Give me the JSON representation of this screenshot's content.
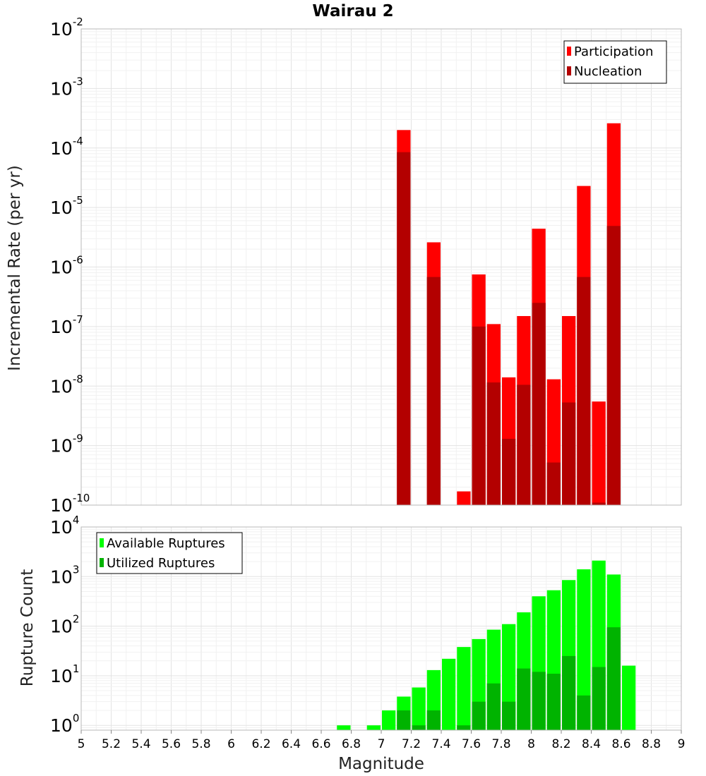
{
  "chart_data": [
    {
      "type": "bar",
      "title": "Wairau 2",
      "ylabel": "Incremental Rate (per yr)",
      "xlabel": "",
      "yscale": "log",
      "ylim": [
        1e-10,
        0.01
      ],
      "xlim": [
        5,
        9
      ],
      "grid": true,
      "legend_position": "top-right",
      "bar_width": 0.1,
      "series": [
        {
          "name": "Participation",
          "color": "#ff0000",
          "points": [
            {
              "x": 7.15,
              "y": 0.0002
            },
            {
              "x": 7.35,
              "y": 2.6e-06
            },
            {
              "x": 7.55,
              "y": 1.7e-10
            },
            {
              "x": 7.65,
              "y": 7.5e-07
            },
            {
              "x": 7.75,
              "y": 1.1e-07
            },
            {
              "x": 7.85,
              "y": 1.4e-08
            },
            {
              "x": 7.95,
              "y": 1.5e-07
            },
            {
              "x": 8.05,
              "y": 4.4e-06
            },
            {
              "x": 8.15,
              "y": 1.3e-08
            },
            {
              "x": 8.25,
              "y": 1.5e-07
            },
            {
              "x": 8.35,
              "y": 2.3e-05
            },
            {
              "x": 8.45,
              "y": 5.5e-09
            },
            {
              "x": 8.55,
              "y": 0.00026
            }
          ]
        },
        {
          "name": "Nucleation",
          "color": "#b30000",
          "points": [
            {
              "x": 7.15,
              "y": 8.5e-05
            },
            {
              "x": 7.35,
              "y": 6.8e-07
            },
            {
              "x": 7.65,
              "y": 1e-07
            },
            {
              "x": 7.75,
              "y": 1.15e-08
            },
            {
              "x": 7.85,
              "y": 1.3e-09
            },
            {
              "x": 7.95,
              "y": 1.05e-08
            },
            {
              "x": 8.05,
              "y": 2.5e-07
            },
            {
              "x": 8.15,
              "y": 5.2e-10
            },
            {
              "x": 8.25,
              "y": 5.3e-09
            },
            {
              "x": 8.35,
              "y": 6.8e-07
            },
            {
              "x": 8.45,
              "y": 1.1e-10
            },
            {
              "x": 8.55,
              "y": 4.9e-06
            }
          ]
        }
      ]
    },
    {
      "type": "bar",
      "title": "",
      "ylabel": "Rupture Count",
      "xlabel": "Magnitude",
      "yscale": "log",
      "ylim": [
        0.8,
        10000.0
      ],
      "xlim": [
        5,
        9
      ],
      "grid": true,
      "legend_position": "top-left",
      "bar_width": 0.1,
      "xticks": [
        "5",
        "5.2",
        "5.4",
        "5.6",
        "5.8",
        "6",
        "6.2",
        "6.4",
        "6.6",
        "6.8",
        "7",
        "7.2",
        "7.4",
        "7.6",
        "7.8",
        "8",
        "8.2",
        "8.4",
        "8.6",
        "8.8",
        "9"
      ],
      "series": [
        {
          "name": "Available Ruptures",
          "color": "#00ff00",
          "points": [
            {
              "x": 6.75,
              "y": 1
            },
            {
              "x": 6.95,
              "y": 1
            },
            {
              "x": 7.05,
              "y": 2
            },
            {
              "x": 7.15,
              "y": 3.8
            },
            {
              "x": 7.25,
              "y": 5.8
            },
            {
              "x": 7.35,
              "y": 13
            },
            {
              "x": 7.45,
              "y": 22
            },
            {
              "x": 7.55,
              "y": 38
            },
            {
              "x": 7.65,
              "y": 55
            },
            {
              "x": 7.75,
              "y": 85
            },
            {
              "x": 7.85,
              "y": 110
            },
            {
              "x": 7.95,
              "y": 190
            },
            {
              "x": 8.05,
              "y": 400
            },
            {
              "x": 8.15,
              "y": 530
            },
            {
              "x": 8.25,
              "y": 850
            },
            {
              "x": 8.35,
              "y": 1400
            },
            {
              "x": 8.45,
              "y": 2100
            },
            {
              "x": 8.55,
              "y": 1100
            },
            {
              "x": 8.65,
              "y": 16
            }
          ]
        },
        {
          "name": "Utilized Ruptures",
          "color": "#00b300",
          "points": [
            {
              "x": 7.15,
              "y": 2
            },
            {
              "x": 7.25,
              "y": 1
            },
            {
              "x": 7.35,
              "y": 2
            },
            {
              "x": 7.55,
              "y": 1
            },
            {
              "x": 7.65,
              "y": 3
            },
            {
              "x": 7.75,
              "y": 7
            },
            {
              "x": 7.85,
              "y": 3
            },
            {
              "x": 7.95,
              "y": 14
            },
            {
              "x": 8.05,
              "y": 12
            },
            {
              "x": 8.15,
              "y": 11
            },
            {
              "x": 8.25,
              "y": 25
            },
            {
              "x": 8.35,
              "y": 4
            },
            {
              "x": 8.45,
              "y": 15
            },
            {
              "x": 8.55,
              "y": 95
            }
          ]
        }
      ]
    }
  ]
}
